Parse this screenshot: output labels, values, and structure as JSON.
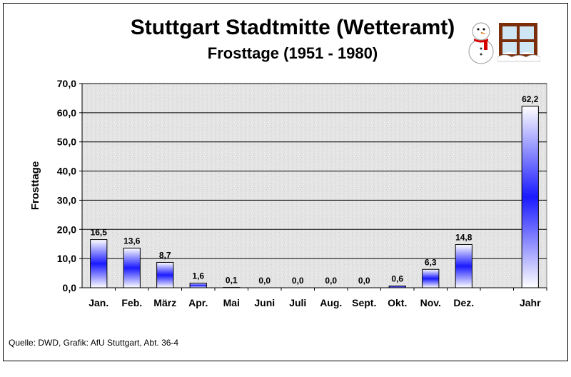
{
  "source": "Quelle: DWD, Grafik: AfU Stuttgart, Abt. 36-4",
  "colors": {
    "bar_dark": "#1a1aff",
    "bar_light": "#ffffff",
    "plot_bg": "#e6e6e6",
    "grid": "#000000"
  },
  "decorations": [
    "snowman-icon",
    "frosted-window-icon"
  ],
  "chart_data": {
    "type": "bar",
    "title": "Stuttgart Stadtmitte (Wetteramt)",
    "subtitle": "Frosttage (1951 - 1980)",
    "ylabel": "Frosttage",
    "xlabel": "",
    "ylim": [
      0,
      70
    ],
    "yticks": [
      "0,0",
      "10,0",
      "20,0",
      "30,0",
      "40,0",
      "50,0",
      "60,0",
      "70,0"
    ],
    "grid": true,
    "categories": [
      "Jan.",
      "Feb.",
      "März",
      "Apr.",
      "Mai",
      "Juni",
      "Juli",
      "Aug.",
      "Sept.",
      "Okt.",
      "Nov.",
      "Dez.",
      "",
      "Jahr"
    ],
    "values": [
      16.5,
      13.6,
      8.7,
      1.6,
      0.1,
      0.0,
      0.0,
      0.0,
      0.0,
      0.6,
      6.3,
      14.8,
      null,
      62.2
    ],
    "value_labels": [
      "16,5",
      "13,6",
      "8,7",
      "1,6",
      "0,1",
      "0,0",
      "0,0",
      "0,0",
      "0,0",
      "0,6",
      "6,3",
      "14,8",
      "",
      "62,2"
    ]
  }
}
